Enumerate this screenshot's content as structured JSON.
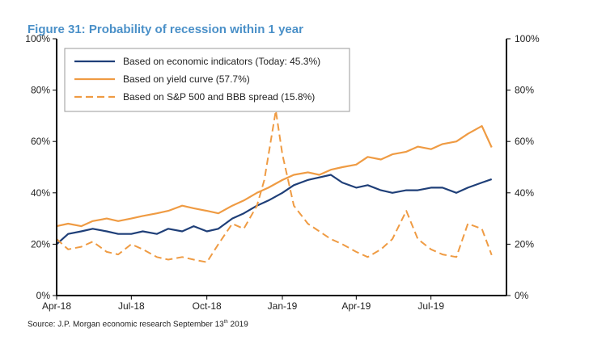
{
  "title": "Figure 31: Probability of recession within 1 year",
  "source": {
    "text": "Source: J.P. Morgan economic research September 13",
    "sup": "th",
    "suffix": " 2019"
  },
  "colors": {
    "navy": "#1f3f78",
    "orange": "#ef9b43",
    "axis": "#000000"
  },
  "chart_data": {
    "type": "line",
    "title": "Figure 31: Probability of recession within 1 year",
    "xlabel": "",
    "ylabel": "",
    "x_ticks": [
      "Apr-18",
      "Jul-18",
      "Oct-18",
      "Jan-19",
      "Apr-19",
      "Jul-19"
    ],
    "y_ticks_left": [
      "0%",
      "20%",
      "40%",
      "60%",
      "80%",
      "100%"
    ],
    "y_ticks_right": [
      "0%",
      "20%",
      "40%",
      "60%",
      "80%",
      "100%"
    ],
    "xlim": [
      "2018-04-01",
      "2019-10-01"
    ],
    "ylim": [
      0,
      100
    ],
    "legend_position": "top-left",
    "series": [
      {
        "name": "Based on economic indicators (Today: 45.3%)",
        "style": "solid",
        "color": "#1f3f78",
        "x": [
          "2018-04-01",
          "2018-04-15",
          "2018-05-01",
          "2018-05-15",
          "2018-06-01",
          "2018-06-15",
          "2018-07-01",
          "2018-07-15",
          "2018-08-01",
          "2018-08-15",
          "2018-09-01",
          "2018-09-15",
          "2018-10-01",
          "2018-10-15",
          "2018-11-01",
          "2018-11-15",
          "2018-12-01",
          "2018-12-15",
          "2019-01-01",
          "2019-01-15",
          "2019-02-01",
          "2019-02-15",
          "2019-03-01",
          "2019-03-15",
          "2019-04-01",
          "2019-04-15",
          "2019-05-01",
          "2019-05-15",
          "2019-06-01",
          "2019-06-15",
          "2019-07-01",
          "2019-07-15",
          "2019-08-01",
          "2019-08-15",
          "2019-09-01",
          "2019-09-13"
        ],
        "y": [
          20,
          24,
          25,
          26,
          25,
          24,
          24,
          25,
          24,
          26,
          25,
          27,
          25,
          26,
          30,
          32,
          35,
          37,
          40,
          43,
          45,
          46,
          47,
          44,
          42,
          43,
          41,
          40,
          41,
          41,
          42,
          42,
          40,
          42,
          44,
          45.3
        ]
      },
      {
        "name": "Based on yield curve (57.7%)",
        "style": "solid",
        "color": "#ef9b43",
        "x": [
          "2018-04-01",
          "2018-04-15",
          "2018-05-01",
          "2018-05-15",
          "2018-06-01",
          "2018-06-15",
          "2018-07-01",
          "2018-07-15",
          "2018-08-01",
          "2018-08-15",
          "2018-09-01",
          "2018-09-15",
          "2018-10-01",
          "2018-10-15",
          "2018-11-01",
          "2018-11-15",
          "2018-12-01",
          "2018-12-15",
          "2019-01-01",
          "2019-01-15",
          "2019-02-01",
          "2019-02-15",
          "2019-03-01",
          "2019-03-15",
          "2019-04-01",
          "2019-04-15",
          "2019-05-01",
          "2019-05-15",
          "2019-06-01",
          "2019-06-15",
          "2019-07-01",
          "2019-07-15",
          "2019-08-01",
          "2019-08-15",
          "2019-09-01",
          "2019-09-13"
        ],
        "y": [
          27,
          28,
          27,
          29,
          30,
          29,
          30,
          31,
          32,
          33,
          35,
          34,
          33,
          32,
          35,
          37,
          40,
          42,
          45,
          47,
          48,
          47,
          49,
          50,
          51,
          54,
          53,
          55,
          56,
          58,
          57,
          59,
          60,
          63,
          66,
          57.7
        ]
      },
      {
        "name": "Based on S&P 500 and BBB spread (15.8%)",
        "style": "dashed",
        "color": "#ef9b43",
        "x": [
          "2018-04-01",
          "2018-04-15",
          "2018-05-01",
          "2018-05-15",
          "2018-06-01",
          "2018-06-15",
          "2018-07-01",
          "2018-07-15",
          "2018-08-01",
          "2018-08-15",
          "2018-09-01",
          "2018-09-15",
          "2018-10-01",
          "2018-10-15",
          "2018-11-01",
          "2018-11-15",
          "2018-12-01",
          "2018-12-10",
          "2018-12-24",
          "2019-01-01",
          "2019-01-15",
          "2019-02-01",
          "2019-02-15",
          "2019-03-01",
          "2019-03-15",
          "2019-04-01",
          "2019-04-15",
          "2019-05-01",
          "2019-05-15",
          "2019-06-01",
          "2019-06-15",
          "2019-07-01",
          "2019-07-15",
          "2019-08-01",
          "2019-08-15",
          "2019-09-01",
          "2019-09-13"
        ],
        "y": [
          22,
          18,
          19,
          21,
          17,
          16,
          20,
          18,
          15,
          14,
          15,
          14,
          13,
          20,
          28,
          26,
          35,
          45,
          72,
          55,
          35,
          28,
          25,
          22,
          20,
          17,
          15,
          18,
          22,
          33,
          22,
          18,
          16,
          15,
          28,
          26,
          15.8
        ]
      }
    ]
  }
}
